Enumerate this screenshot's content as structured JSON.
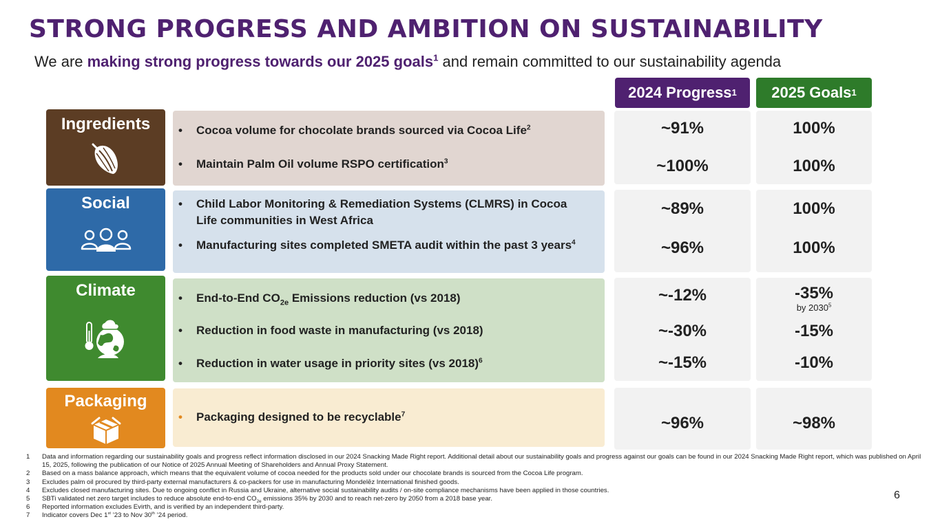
{
  "title": "STRONG PROGRESS AND AMBITION ON SUSTAINABILITY",
  "subtitle": {
    "pre": "We are ",
    "highlight": "making strong progress towards our 2025 goals",
    "highlight_sup": "1",
    "post": " and remain committed to our sustainability agenda"
  },
  "columns": {
    "progress": "2024 Progress",
    "progress_sup": "1",
    "goals": "2025 Goals",
    "goals_sup": "1"
  },
  "categories": [
    {
      "label": "Ingredients",
      "icon": "cocoa-pod-icon",
      "color": "#5c3d24",
      "band_color": "#e1d6d1",
      "rows": [
        {
          "bullet": "•",
          "text": "Cocoa volume for chocolate brands sourced via Cocoa Life",
          "sup": "2",
          "progress": "~91%",
          "goal": "100%"
        },
        {
          "bullet": "•",
          "text": "Maintain Palm Oil volume RSPO certification",
          "sup": "3",
          "progress": "~100%",
          "goal": "100%"
        }
      ]
    },
    {
      "label": "Social",
      "icon": "people-icon",
      "color": "#2e6aa8",
      "band_color": "#d6e1ec",
      "rows": [
        {
          "bullet": "•",
          "text": "Child Labor Monitoring & Remediation Systems (CLMRS) in Cocoa Life communities in West Africa",
          "sup": "",
          "progress": "~89%",
          "goal": "100%"
        },
        {
          "bullet": "•",
          "text": "Manufacturing sites completed SMETA audit within the past 3 years",
          "sup": "4",
          "progress": "~96%",
          "goal": "100%"
        }
      ]
    },
    {
      "label": "Climate",
      "icon": "globe-thermometer-icon",
      "color": "#3f8a2f",
      "band_color": "#cfe0c7",
      "rows": [
        {
          "bullet": "•",
          "text_pre": "End-to-End CO",
          "text_sub": "2e",
          "text": " Emissions reduction (vs 2018)",
          "sup": "",
          "progress": "~-12%",
          "goal": "-35%",
          "goal_note": "by 2030",
          "goal_note_sup": "5"
        },
        {
          "bullet": "•",
          "text": "Reduction in food waste in manufacturing (vs 2018)",
          "sup": "",
          "progress": "~-30%",
          "goal": "-15%"
        },
        {
          "bullet": "•",
          "text": "Reduction in water usage in priority sites (vs 2018)",
          "sup": "6",
          "progress": "~-15%",
          "goal": "-10%"
        }
      ]
    },
    {
      "label": "Packaging",
      "icon": "package-box-icon",
      "color": "#e2891f",
      "band_color": "#f9ecd2",
      "rows": [
        {
          "bullet": "•",
          "text": "Packaging designed to be recyclable",
          "sup": "7",
          "progress": "~96%",
          "goal": "~98%"
        }
      ]
    }
  ],
  "footnotes": [
    {
      "num": "1",
      "text": "Data and information regarding our sustainability goals and progress reflect information disclosed in our 2024 Snacking Made Right report. Additional detail about our sustainability goals and progress against our goals can be found in our 2024 Snacking Made Right report, which was published on April 15, 2025, following the publication of our Notice of 2025 Annual Meeting of Shareholders and Annual Proxy Statement."
    },
    {
      "num": "2",
      "text": "Based on a mass balance approach, which means that the equivalent volume of cocoa needed for the products sold under our chocolate brands is sourced from the Cocoa Life program."
    },
    {
      "num": "3",
      "text": "Excludes palm oil procured by third-party external manufacturers & co-packers for use in manufacturing Mondelēz International finished goods."
    },
    {
      "num": "4",
      "text": "Excludes closed manufacturing sites. Due to ongoing conflict in Russia and Ukraine, alternative social sustainability audits / on-site compliance mechanisms have been applied in those countries."
    },
    {
      "num": "5",
      "text_pre": "SBTi validated net zero target includes to reduce absolute end-to-end CO",
      "text_sub": "2e",
      "text": " emissions 35% by 2030 and to reach net-zero by 2050 from a 2018 base year."
    },
    {
      "num": "6",
      "text": "Reported information excludes Evirth, and is verified by an independent third-party."
    },
    {
      "num": "7",
      "text_a": "Indicator covers Dec 1",
      "sup_a": "st",
      "text_b": " ’23 to Nov 30",
      "sup_b": "th",
      "text_c": " ’24 period."
    }
  ],
  "page_number": "6"
}
